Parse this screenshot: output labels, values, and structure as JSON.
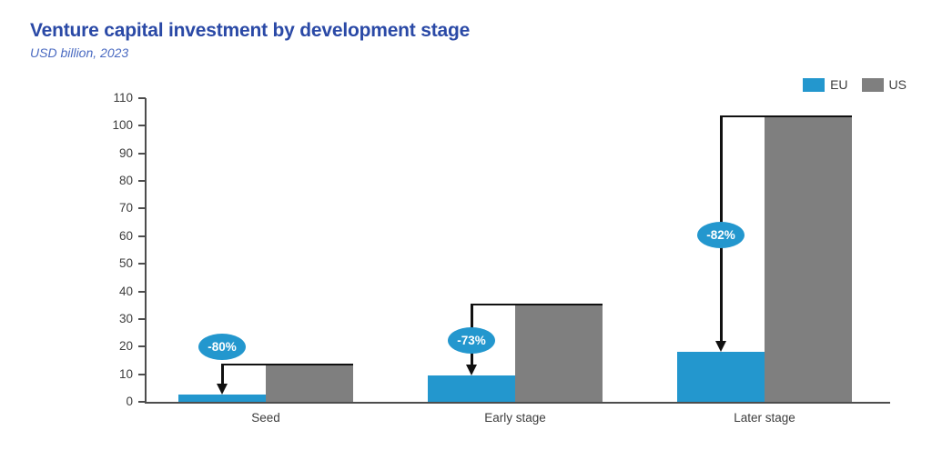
{
  "header": {
    "title": "Venture capital investment by development stage",
    "subtitle": "USD billion, 2023"
  },
  "legend": [
    {
      "label": "EU",
      "color": "#2397ce"
    },
    {
      "label": "US",
      "color": "#7f7f7f"
    }
  ],
  "chart_data": {
    "type": "bar",
    "title": "Venture capital investment by development stage",
    "subtitle": "USD billion, 2023",
    "categories": [
      "Seed",
      "Early stage",
      "Later stage"
    ],
    "series": [
      {
        "name": "EU",
        "color": "#2397ce",
        "values": [
          2.6,
          9.4,
          18.1
        ]
      },
      {
        "name": "US",
        "color": "#7f7f7f",
        "values": [
          13.3,
          34.8,
          103
        ]
      }
    ],
    "annotations": [
      {
        "category": "Seed",
        "label": "-80%"
      },
      {
        "category": "Early stage",
        "label": "-73%"
      },
      {
        "category": "Later stage",
        "label": "-82%"
      }
    ],
    "ylim": [
      0,
      110
    ],
    "ytick_step": 10,
    "yticks": [
      0,
      10,
      20,
      30,
      40,
      50,
      60,
      70,
      80,
      90,
      100,
      110
    ],
    "xlabel": "",
    "ylabel": "",
    "grid": false,
    "legend_position": "top-right"
  },
  "colors": {
    "title": "#2a49a6",
    "subtitle": "#4a6ac1",
    "axis": "#4d4d4d",
    "axis_text": "#3d3d3d",
    "eu_bar": "#2397ce",
    "us_bar": "#7f7f7f",
    "annotation_badge": "#2397ce",
    "annotation_arrow": "#111111",
    "background": "#ffffff"
  }
}
